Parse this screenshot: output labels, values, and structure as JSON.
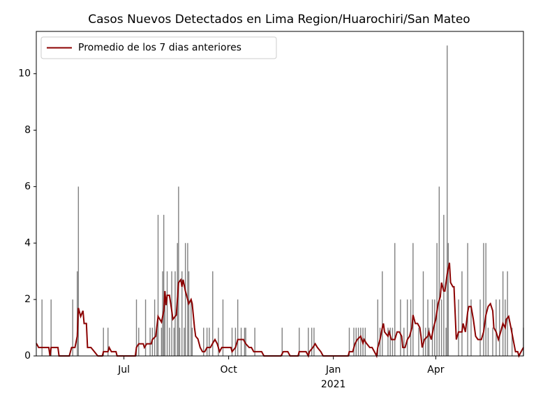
{
  "chart_data": {
    "type": "bar",
    "title": "Casos Nuevos Detectados en Lima Region/Huarochiri/San Mateo",
    "color": "#808080",
    "x": [
      5,
      13,
      32,
      36,
      37,
      59,
      63,
      88,
      90,
      96,
      100,
      102,
      104,
      106,
      107,
      110,
      111,
      112,
      113,
      115,
      117,
      119,
      121,
      122,
      124,
      125,
      126,
      128,
      130,
      131,
      133,
      134,
      136,
      137,
      147,
      150,
      152,
      155,
      160,
      164,
      172,
      175,
      177,
      180,
      183,
      184,
      192,
      216,
      231,
      239,
      242,
      244,
      275,
      279,
      281,
      283,
      285,
      287,
      289,
      300,
      302,
      304,
      309,
      311,
      313,
      315,
      320,
      323,
      326,
      329,
      331,
      336,
      340,
      342,
      344,
      345,
      348,
      350,
      352,
      354,
      356,
      358,
      360,
      361,
      362,
      371,
      374,
      379,
      382,
      390,
      393,
      395,
      397,
      401,
      404,
      407,
      410,
      412,
      414,
      418,
      428
    ],
    "values": [
      2,
      2,
      2,
      3,
      6,
      1,
      1,
      2,
      1,
      2,
      1,
      1,
      2,
      1,
      5,
      1,
      3,
      5,
      2,
      3,
      1,
      3,
      1,
      3,
      4,
      6,
      1,
      3,
      1,
      4,
      4,
      3,
      2,
      1,
      1,
      1,
      1,
      3,
      1,
      2,
      1,
      1,
      2,
      1,
      1,
      1,
      1,
      1,
      1,
      1,
      1,
      1,
      1,
      1,
      1,
      1,
      1,
      1,
      1,
      2,
      1,
      3,
      1,
      1,
      1,
      4,
      2,
      1,
      2,
      2,
      4,
      1,
      3,
      1,
      2,
      1,
      2,
      2,
      4,
      6,
      2,
      5,
      1,
      11,
      4,
      2,
      3,
      4,
      2,
      2,
      4,
      4,
      1,
      1,
      2,
      2,
      3,
      2,
      3,
      1,
      1
    ],
    "series": [
      {
        "name": "Promedio de los 7 dias anteriores",
        "type": "line",
        "color": "#8b0000",
        "x": [
          0,
          2,
          11,
          12,
          13,
          19,
          20,
          29,
          31,
          34,
          36,
          37,
          39,
          41,
          42,
          44,
          45,
          48,
          51,
          54,
          58,
          59,
          63,
          64,
          66,
          70,
          71,
          87,
          88,
          90,
          94,
          95,
          97,
          101,
          102,
          105,
          107,
          110,
          112,
          113,
          114,
          115,
          117,
          119,
          120,
          123,
          125,
          127,
          128,
          129,
          131,
          132,
          134,
          136,
          137,
          139,
          140,
          142,
          144,
          146,
          148,
          150,
          153,
          155,
          157,
          159,
          161,
          163,
          171,
          172,
          175,
          177,
          182,
          184,
          187,
          189,
          191,
          198,
          200,
          215,
          217,
          221,
          223,
          230,
          231,
          237,
          239,
          240,
          243,
          245,
          247,
          250,
          252,
          274,
          275,
          278,
          280,
          282,
          285,
          287,
          288,
          290,
          293,
          295,
          297,
          299,
          300,
          302,
          304,
          305,
          306,
          309,
          310,
          312,
          315,
          317,
          319,
          321,
          322,
          324,
          326,
          328,
          330,
          331,
          333,
          335,
          337,
          338,
          339,
          341,
          344,
          345,
          347,
          349,
          351,
          353,
          355,
          356,
          358,
          359,
          361,
          363,
          364,
          366,
          367,
          369,
          371,
          374,
          375,
          377,
          379,
          380,
          382,
          384,
          386,
          388,
          391,
          393,
          395,
          397,
          399,
          401,
          402,
          404,
          406,
          408,
          410,
          412,
          413,
          415,
          417,
          419,
          421,
          423,
          424,
          426,
          428
        ],
        "values": [
          0.45,
          0.3,
          0.3,
          0,
          0.3,
          0.3,
          0,
          0,
          0.3,
          0.3,
          0.7,
          1.7,
          1.4,
          1.6,
          1.15,
          1.15,
          0.3,
          0.3,
          0.15,
          0,
          0,
          0.15,
          0.15,
          0.3,
          0.15,
          0.15,
          0,
          0,
          0.3,
          0.43,
          0.43,
          0.3,
          0.43,
          0.43,
          0.58,
          0.7,
          1.4,
          1.2,
          1.6,
          2.3,
          1.8,
          2.15,
          2.15,
          1.6,
          1.3,
          1.45,
          2.6,
          2.7,
          2.45,
          2.7,
          2.3,
          2.15,
          1.85,
          2.0,
          1.85,
          1.0,
          0.7,
          0.6,
          0.3,
          0.15,
          0.15,
          0.3,
          0.3,
          0.45,
          0.58,
          0.43,
          0.15,
          0.3,
          0.3,
          0.15,
          0.3,
          0.58,
          0.58,
          0.43,
          0.3,
          0.3,
          0.15,
          0.15,
          0,
          0,
          0.15,
          0.15,
          0,
          0,
          0.15,
          0.15,
          0,
          0.15,
          0.3,
          0.43,
          0.3,
          0.15,
          0,
          0,
          0.15,
          0.15,
          0.43,
          0.58,
          0.7,
          0.45,
          0.58,
          0.45,
          0.3,
          0.3,
          0.15,
          0,
          0.3,
          0.58,
          1.0,
          1.15,
          0.85,
          0.7,
          0.85,
          0.58,
          0.58,
          0.85,
          0.85,
          0.7,
          0.3,
          0.3,
          0.58,
          0.7,
          1.0,
          1.45,
          1.15,
          1.15,
          1.0,
          0.7,
          0.3,
          0.58,
          0.7,
          0.85,
          0.58,
          1.0,
          1.3,
          1.85,
          2.1,
          2.6,
          2.3,
          2.3,
          2.9,
          3.3,
          2.6,
          2.45,
          2.45,
          0.58,
          0.85,
          0.85,
          1.15,
          0.85,
          1.55,
          1.75,
          1.75,
          1.3,
          0.7,
          0.58,
          0.58,
          0.85,
          1.45,
          1.75,
          1.85,
          1.6,
          1.0,
          0.85,
          0.58,
          0.85,
          1.15,
          1.0,
          1.3,
          1.4,
          1.0,
          0.58,
          0.15,
          0.15,
          0,
          0.15,
          0.3
        ]
      }
    ],
    "xlim": [
      0,
      428
    ],
    "xticks": [
      {
        "value": 77,
        "label": "Jul"
      },
      {
        "value": 169,
        "label": "Oct"
      },
      {
        "value": 261,
        "label": "Jan"
      },
      {
        "value": 351,
        "label": "Apr"
      }
    ],
    "x_year_label": "2021",
    "ylim": [
      0,
      11.5
    ],
    "yticks": [
      0,
      2,
      4,
      6,
      8,
      10
    ],
    "legend": "upper left"
  }
}
